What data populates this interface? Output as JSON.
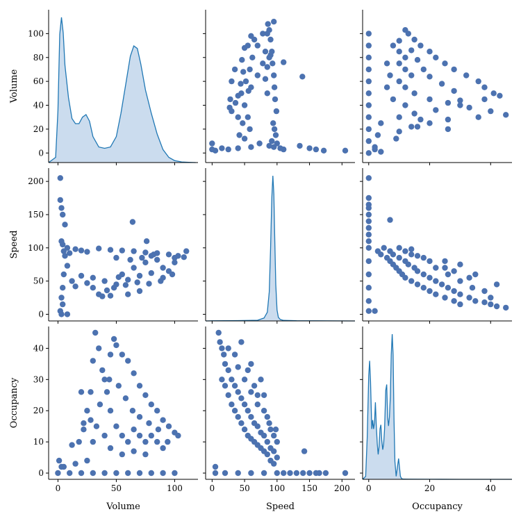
{
  "chart_data": {
    "type": "pairplot",
    "title": "",
    "variables": [
      "Volume",
      "Speed",
      "Occupancy"
    ],
    "diagonal": "kde",
    "offdiagonal": "scatter",
    "colors": {
      "scatter": "#4c72b0",
      "kde_line": "#1f77b4",
      "kde_fill": "#c5d8ec"
    },
    "axes": {
      "Volume": {
        "lim": [
          -8,
          120
        ],
        "ticks": [
          0,
          50,
          100
        ],
        "row_ticks": [
          0,
          20,
          40,
          60,
          80,
          100
        ]
      },
      "Speed": {
        "lim": [
          -10,
          220
        ],
        "ticks": [
          0,
          50,
          100,
          150,
          200
        ],
        "row_ticks": [
          0,
          50,
          100,
          150,
          200
        ]
      },
      "Occupancy": {
        "lim": [
          -2,
          47
        ],
        "ticks": [
          0,
          20,
          40
        ],
        "row_ticks": [
          0,
          10,
          20,
          30,
          40
        ]
      }
    },
    "kde": {
      "Volume": {
        "x": [
          -8,
          -2,
          0,
          1.5,
          3,
          4.5,
          6,
          9,
          12,
          15,
          18,
          21,
          24,
          27,
          30,
          35,
          40,
          45,
          50,
          54,
          58,
          62,
          65,
          68,
          71,
          75,
          80,
          85,
          90,
          95,
          100,
          106,
          112,
          118
        ],
        "density": [
          0,
          0.004,
          0.04,
          0.099,
          0.112,
          0.1,
          0.075,
          0.05,
          0.034,
          0.03,
          0.03,
          0.035,
          0.037,
          0.032,
          0.02,
          0.012,
          0.011,
          0.012,
          0.02,
          0.038,
          0.06,
          0.082,
          0.09,
          0.088,
          0.076,
          0.056,
          0.038,
          0.022,
          0.01,
          0.004,
          0.0015,
          0.0005,
          0.0002,
          0
        ]
      },
      "Speed": {
        "x": [
          -10,
          0,
          40,
          70,
          80,
          85,
          88,
          90,
          92,
          93.5,
          95,
          96.5,
          98,
          100,
          102,
          105,
          110,
          130,
          220
        ],
        "density": [
          0,
          0.0002,
          0.0005,
          0.001,
          0.004,
          0.012,
          0.04,
          0.1,
          0.17,
          0.2,
          0.175,
          0.11,
          0.05,
          0.015,
          0.005,
          0.002,
          0.0008,
          0.0003,
          0
        ]
      },
      "Occupancy": {
        "x": [
          -2,
          -1,
          -0.5,
          0,
          0.3,
          0.6,
          1,
          1.3,
          1.6,
          1.9,
          2.2,
          2.5,
          2.8,
          3.1,
          3.4,
          3.7,
          4,
          4.3,
          4.6,
          4.9,
          5.2,
          5.6,
          5.9,
          6.2,
          6.5,
          6.8,
          7.1,
          7.4,
          7.7,
          8,
          8.3,
          8.6,
          9,
          9.4,
          9.8,
          10.1,
          10.4,
          10.8,
          11.5,
          13,
          20,
          30,
          40,
          47
        ],
        "density": [
          0,
          0.005,
          0.07,
          0.175,
          0.2,
          0.165,
          0.085,
          0.1,
          0.085,
          0.095,
          0.13,
          0.09,
          0.06,
          0.042,
          0.055,
          0.085,
          0.092,
          0.065,
          0.05,
          0.06,
          0.085,
          0.15,
          0.16,
          0.105,
          0.09,
          0.105,
          0.14,
          0.21,
          0.245,
          0.21,
          0.1,
          0.03,
          0.005,
          0.02,
          0.035,
          0.02,
          0.005,
          0.001,
          0.0004,
          0.0002,
          0.0001,
          5e-05,
          0,
          0
        ]
      }
    },
    "scatter": {
      "Volume_Speed": [
        [
          5,
          95
        ],
        [
          3,
          110
        ],
        [
          4,
          105
        ],
        [
          6,
          88
        ],
        [
          8,
          100
        ],
        [
          10,
          92
        ],
        [
          15,
          98
        ],
        [
          20,
          96
        ],
        [
          25,
          94
        ],
        [
          35,
          99
        ],
        [
          45,
          97
        ],
        [
          55,
          96
        ],
        [
          65,
          95
        ],
        [
          75,
          93
        ],
        [
          85,
          92
        ],
        [
          95,
          90
        ],
        [
          103,
          88
        ],
        [
          108,
          86
        ],
        [
          30,
          55
        ],
        [
          40,
          50
        ],
        [
          50,
          45
        ],
        [
          60,
          52
        ],
        [
          70,
          58
        ],
        [
          80,
          62
        ],
        [
          90,
          70
        ],
        [
          100,
          78
        ],
        [
          70,
          35
        ],
        [
          60,
          30
        ],
        [
          45,
          28
        ],
        [
          35,
          30
        ],
        [
          30,
          40
        ],
        [
          55,
          60
        ],
        [
          65,
          70
        ],
        [
          75,
          78
        ],
        [
          85,
          82
        ],
        [
          5,
          60
        ],
        [
          4,
          40
        ],
        [
          3,
          25
        ],
        [
          4,
          15
        ],
        [
          2,
          5
        ],
        [
          3,
          0
        ],
        [
          8,
          0
        ],
        [
          2,
          205
        ],
        [
          2,
          172
        ],
        [
          3,
          160
        ],
        [
          4,
          150
        ],
        [
          6,
          135
        ],
        [
          64,
          139
        ],
        [
          76,
          110
        ],
        [
          38,
          27
        ],
        [
          42,
          36
        ],
        [
          48,
          40
        ],
        [
          52,
          56
        ],
        [
          90,
          55
        ],
        [
          95,
          65
        ],
        [
          100,
          85
        ],
        [
          110,
          95
        ],
        [
          20,
          58
        ],
        [
          25,
          47
        ],
        [
          15,
          42
        ],
        [
          12,
          50
        ],
        [
          8,
          73
        ],
        [
          50,
          85
        ],
        [
          80,
          88
        ],
        [
          58,
          44
        ],
        [
          68,
          48
        ],
        [
          78,
          46
        ],
        [
          88,
          50
        ],
        [
          98,
          60
        ],
        [
          62,
          82
        ],
        [
          72,
          85
        ],
        [
          82,
          90
        ]
      ],
      "Volume_Occupancy": [
        [
          0,
          0
        ],
        [
          10,
          0
        ],
        [
          20,
          0
        ],
        [
          30,
          0
        ],
        [
          40,
          0
        ],
        [
          50,
          0
        ],
        [
          60,
          0
        ],
        [
          70,
          0
        ],
        [
          80,
          0
        ],
        [
          90,
          0
        ],
        [
          100,
          0
        ],
        [
          5,
          2
        ],
        [
          15,
          3
        ],
        [
          25,
          4
        ],
        [
          1,
          4
        ],
        [
          3,
          2
        ],
        [
          12,
          9
        ],
        [
          18,
          10
        ],
        [
          22,
          16
        ],
        [
          28,
          26
        ],
        [
          30,
          36
        ],
        [
          32,
          45
        ],
        [
          35,
          40
        ],
        [
          38,
          33
        ],
        [
          40,
          30
        ],
        [
          42,
          26
        ],
        [
          45,
          38
        ],
        [
          48,
          43
        ],
        [
          50,
          41
        ],
        [
          55,
          38
        ],
        [
          60,
          36
        ],
        [
          65,
          32
        ],
        [
          70,
          28
        ],
        [
          75,
          25
        ],
        [
          80,
          22
        ],
        [
          85,
          20
        ],
        [
          90,
          17
        ],
        [
          95,
          15
        ],
        [
          100,
          13
        ],
        [
          103,
          12
        ],
        [
          45,
          20
        ],
        [
          50,
          15
        ],
        [
          55,
          12
        ],
        [
          60,
          10
        ],
        [
          65,
          14
        ],
        [
          70,
          18
        ],
        [
          75,
          10
        ],
        [
          80,
          12
        ],
        [
          85,
          10
        ],
        [
          90,
          8
        ],
        [
          20,
          26
        ],
        [
          25,
          20
        ],
        [
          28,
          17
        ],
        [
          33,
          15
        ],
        [
          40,
          12
        ],
        [
          22,
          14
        ],
        [
          30,
          10
        ],
        [
          36,
          22
        ],
        [
          44,
          30
        ],
        [
          52,
          28
        ],
        [
          58,
          24
        ],
        [
          64,
          20
        ],
        [
          70,
          12
        ],
        [
          78,
          16
        ],
        [
          86,
          14
        ],
        [
          94,
          10
        ],
        [
          45,
          8
        ],
        [
          55,
          6
        ],
        [
          65,
          7
        ],
        [
          75,
          6
        ]
      ],
      "Speed_Occupancy": [
        [
          10,
          45
        ],
        [
          12,
          42
        ],
        [
          15,
          40
        ],
        [
          18,
          38
        ],
        [
          20,
          35
        ],
        [
          25,
          33
        ],
        [
          30,
          30
        ],
        [
          35,
          28
        ],
        [
          40,
          26
        ],
        [
          45,
          24
        ],
        [
          50,
          22
        ],
        [
          55,
          20
        ],
        [
          60,
          18
        ],
        [
          65,
          16
        ],
        [
          70,
          15
        ],
        [
          75,
          13
        ],
        [
          80,
          12
        ],
        [
          85,
          10
        ],
        [
          90,
          8
        ],
        [
          95,
          7
        ],
        [
          100,
          5
        ],
        [
          15,
          30
        ],
        [
          20,
          28
        ],
        [
          25,
          25
        ],
        [
          30,
          22
        ],
        [
          35,
          20
        ],
        [
          40,
          18
        ],
        [
          45,
          16
        ],
        [
          50,
          14
        ],
        [
          55,
          12
        ],
        [
          60,
          11
        ],
        [
          65,
          10
        ],
        [
          70,
          9
        ],
        [
          75,
          8
        ],
        [
          80,
          7
        ],
        [
          85,
          6
        ],
        [
          90,
          4
        ],
        [
          95,
          3
        ],
        [
          60,
          35
        ],
        [
          45,
          42
        ],
        [
          75,
          30
        ],
        [
          80,
          25
        ],
        [
          85,
          18
        ],
        [
          90,
          14
        ],
        [
          95,
          12
        ],
        [
          100,
          10
        ],
        [
          142,
          7
        ],
        [
          5,
          2
        ],
        [
          5,
          0
        ],
        [
          20,
          0
        ],
        [
          40,
          0
        ],
        [
          60,
          0
        ],
        [
          80,
          0
        ],
        [
          100,
          0
        ],
        [
          120,
          0
        ],
        [
          140,
          0
        ],
        [
          160,
          0
        ],
        [
          175,
          0
        ],
        [
          205,
          0
        ],
        [
          110,
          0
        ],
        [
          130,
          0
        ],
        [
          150,
          0
        ],
        [
          165,
          0
        ],
        [
          35,
          38
        ],
        [
          25,
          40
        ],
        [
          55,
          33
        ],
        [
          65,
          28
        ],
        [
          70,
          25
        ],
        [
          40,
          34
        ],
        [
          50,
          30
        ],
        [
          60,
          26
        ],
        [
          70,
          22
        ],
        [
          80,
          20
        ],
        [
          88,
          16
        ],
        [
          98,
          14
        ]
      ]
    }
  }
}
